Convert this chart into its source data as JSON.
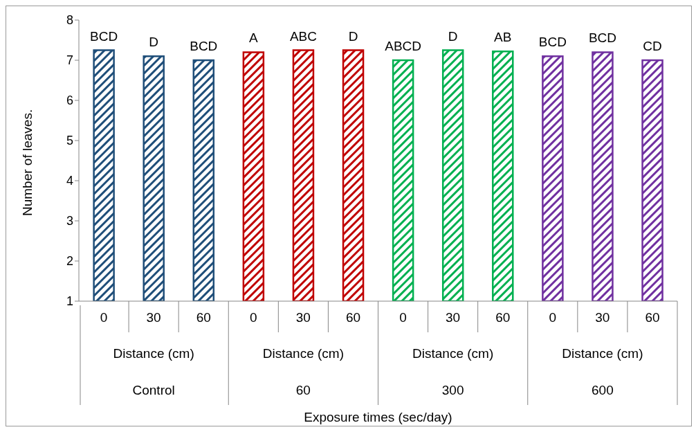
{
  "chart_data": {
    "type": "bar",
    "ylabel": "Number of leaves.",
    "categories": [
      "0",
      "30",
      "60",
      "0",
      "30",
      "60",
      "0",
      "30",
      "60",
      "0",
      "30",
      "60"
    ],
    "values": [
      7.25,
      7.1,
      7.0,
      7.2,
      7.25,
      7.25,
      7.0,
      7.25,
      7.22,
      7.1,
      7.2,
      7.0
    ],
    "value_labels": [
      "BCD",
      "D",
      "BCD",
      "A",
      "ABC",
      "D",
      "ABCD",
      "D",
      "AB",
      "BCD",
      "BCD",
      "CD"
    ],
    "colors": [
      "#1f4e79",
      "#1f4e79",
      "#1f4e79",
      "#c00000",
      "#c00000",
      "#c00000",
      "#00b050",
      "#00b050",
      "#00b050",
      "#7030a0",
      "#7030a0",
      "#7030a0"
    ],
    "annotations": [
      "Distance (cm)",
      "Distance (cm)",
      "Distance (cm)",
      "Distance (cm)",
      "Control",
      "60",
      "300",
      "600",
      "Exposure times  (sec/day)"
    ],
    "ylim": [
      1,
      8
    ],
    "yticks": [
      1,
      2,
      3,
      4,
      5,
      6,
      7,
      8
    ],
    "grid": false,
    "legend": false
  }
}
